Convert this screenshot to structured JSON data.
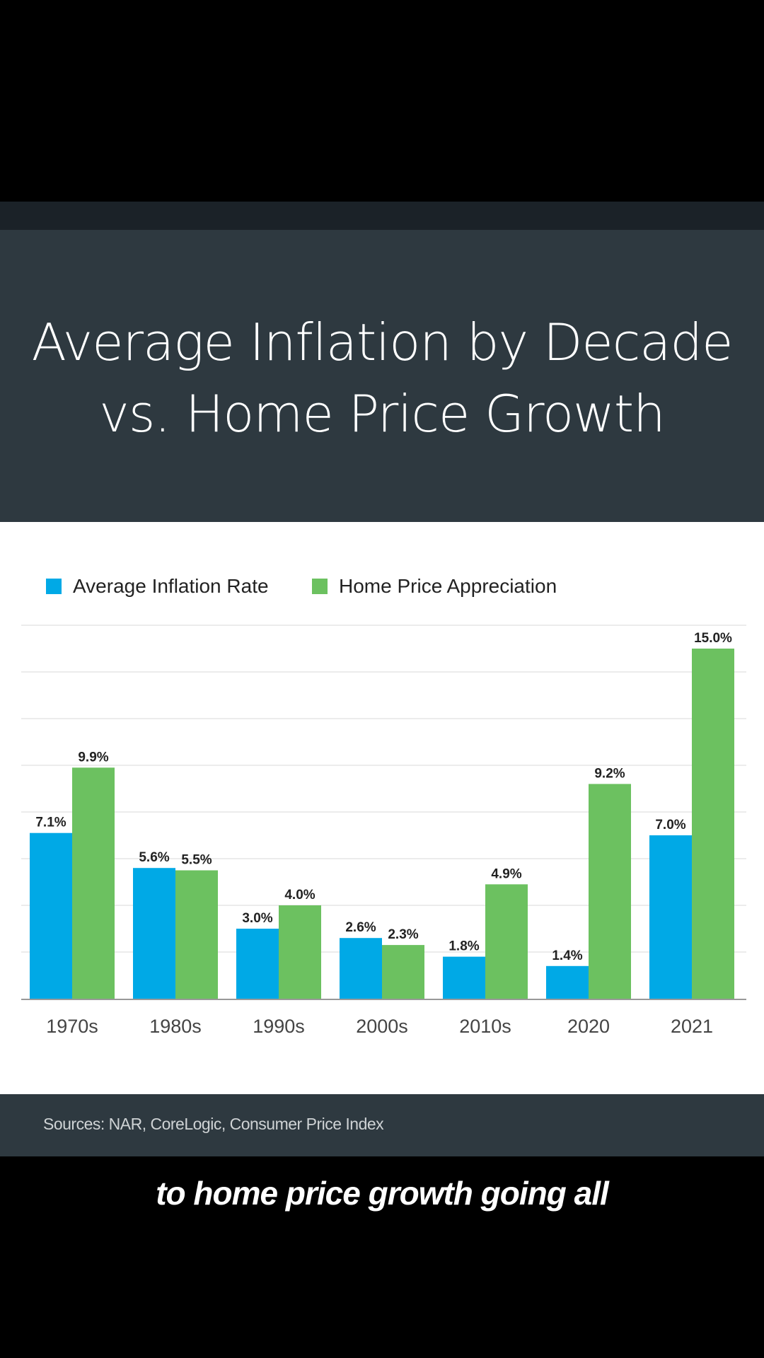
{
  "title": {
    "line1": "Average Inflation by Decade",
    "line2": "vs. Home Price Growth"
  },
  "footer": {
    "sources": "Sources: NAR, CoreLogic, Consumer Price Index"
  },
  "caption": "to home price growth going all",
  "chart_data": {
    "type": "bar",
    "title": "Average Inflation by Decade vs. Home Price Growth",
    "categories": [
      "1970s",
      "1980s",
      "1990s",
      "2000s",
      "2010s",
      "2020",
      "2021"
    ],
    "series": [
      {
        "name": "Average Inflation Rate",
        "color": "#00a9e6",
        "values": [
          7.1,
          5.6,
          3.0,
          2.6,
          1.8,
          1.4,
          7.0
        ],
        "labels": [
          "7.1%",
          "5.6%",
          "3.0%",
          "2.6%",
          "1.8%",
          "1.4%",
          "7.0%"
        ]
      },
      {
        "name": "Home Price Appreciation",
        "color": "#6cc160",
        "values": [
          9.9,
          5.5,
          4.0,
          2.3,
          4.9,
          9.2,
          15.0
        ],
        "labels": [
          "9.9%",
          "5.5%",
          "4.0%",
          "2.3%",
          "4.9%",
          "9.2%",
          "15.0%"
        ]
      }
    ],
    "ylim": [
      0,
      16
    ],
    "grid_step": 2,
    "grid": true,
    "legend": "top-left",
    "xlabel": "",
    "ylabel": ""
  }
}
